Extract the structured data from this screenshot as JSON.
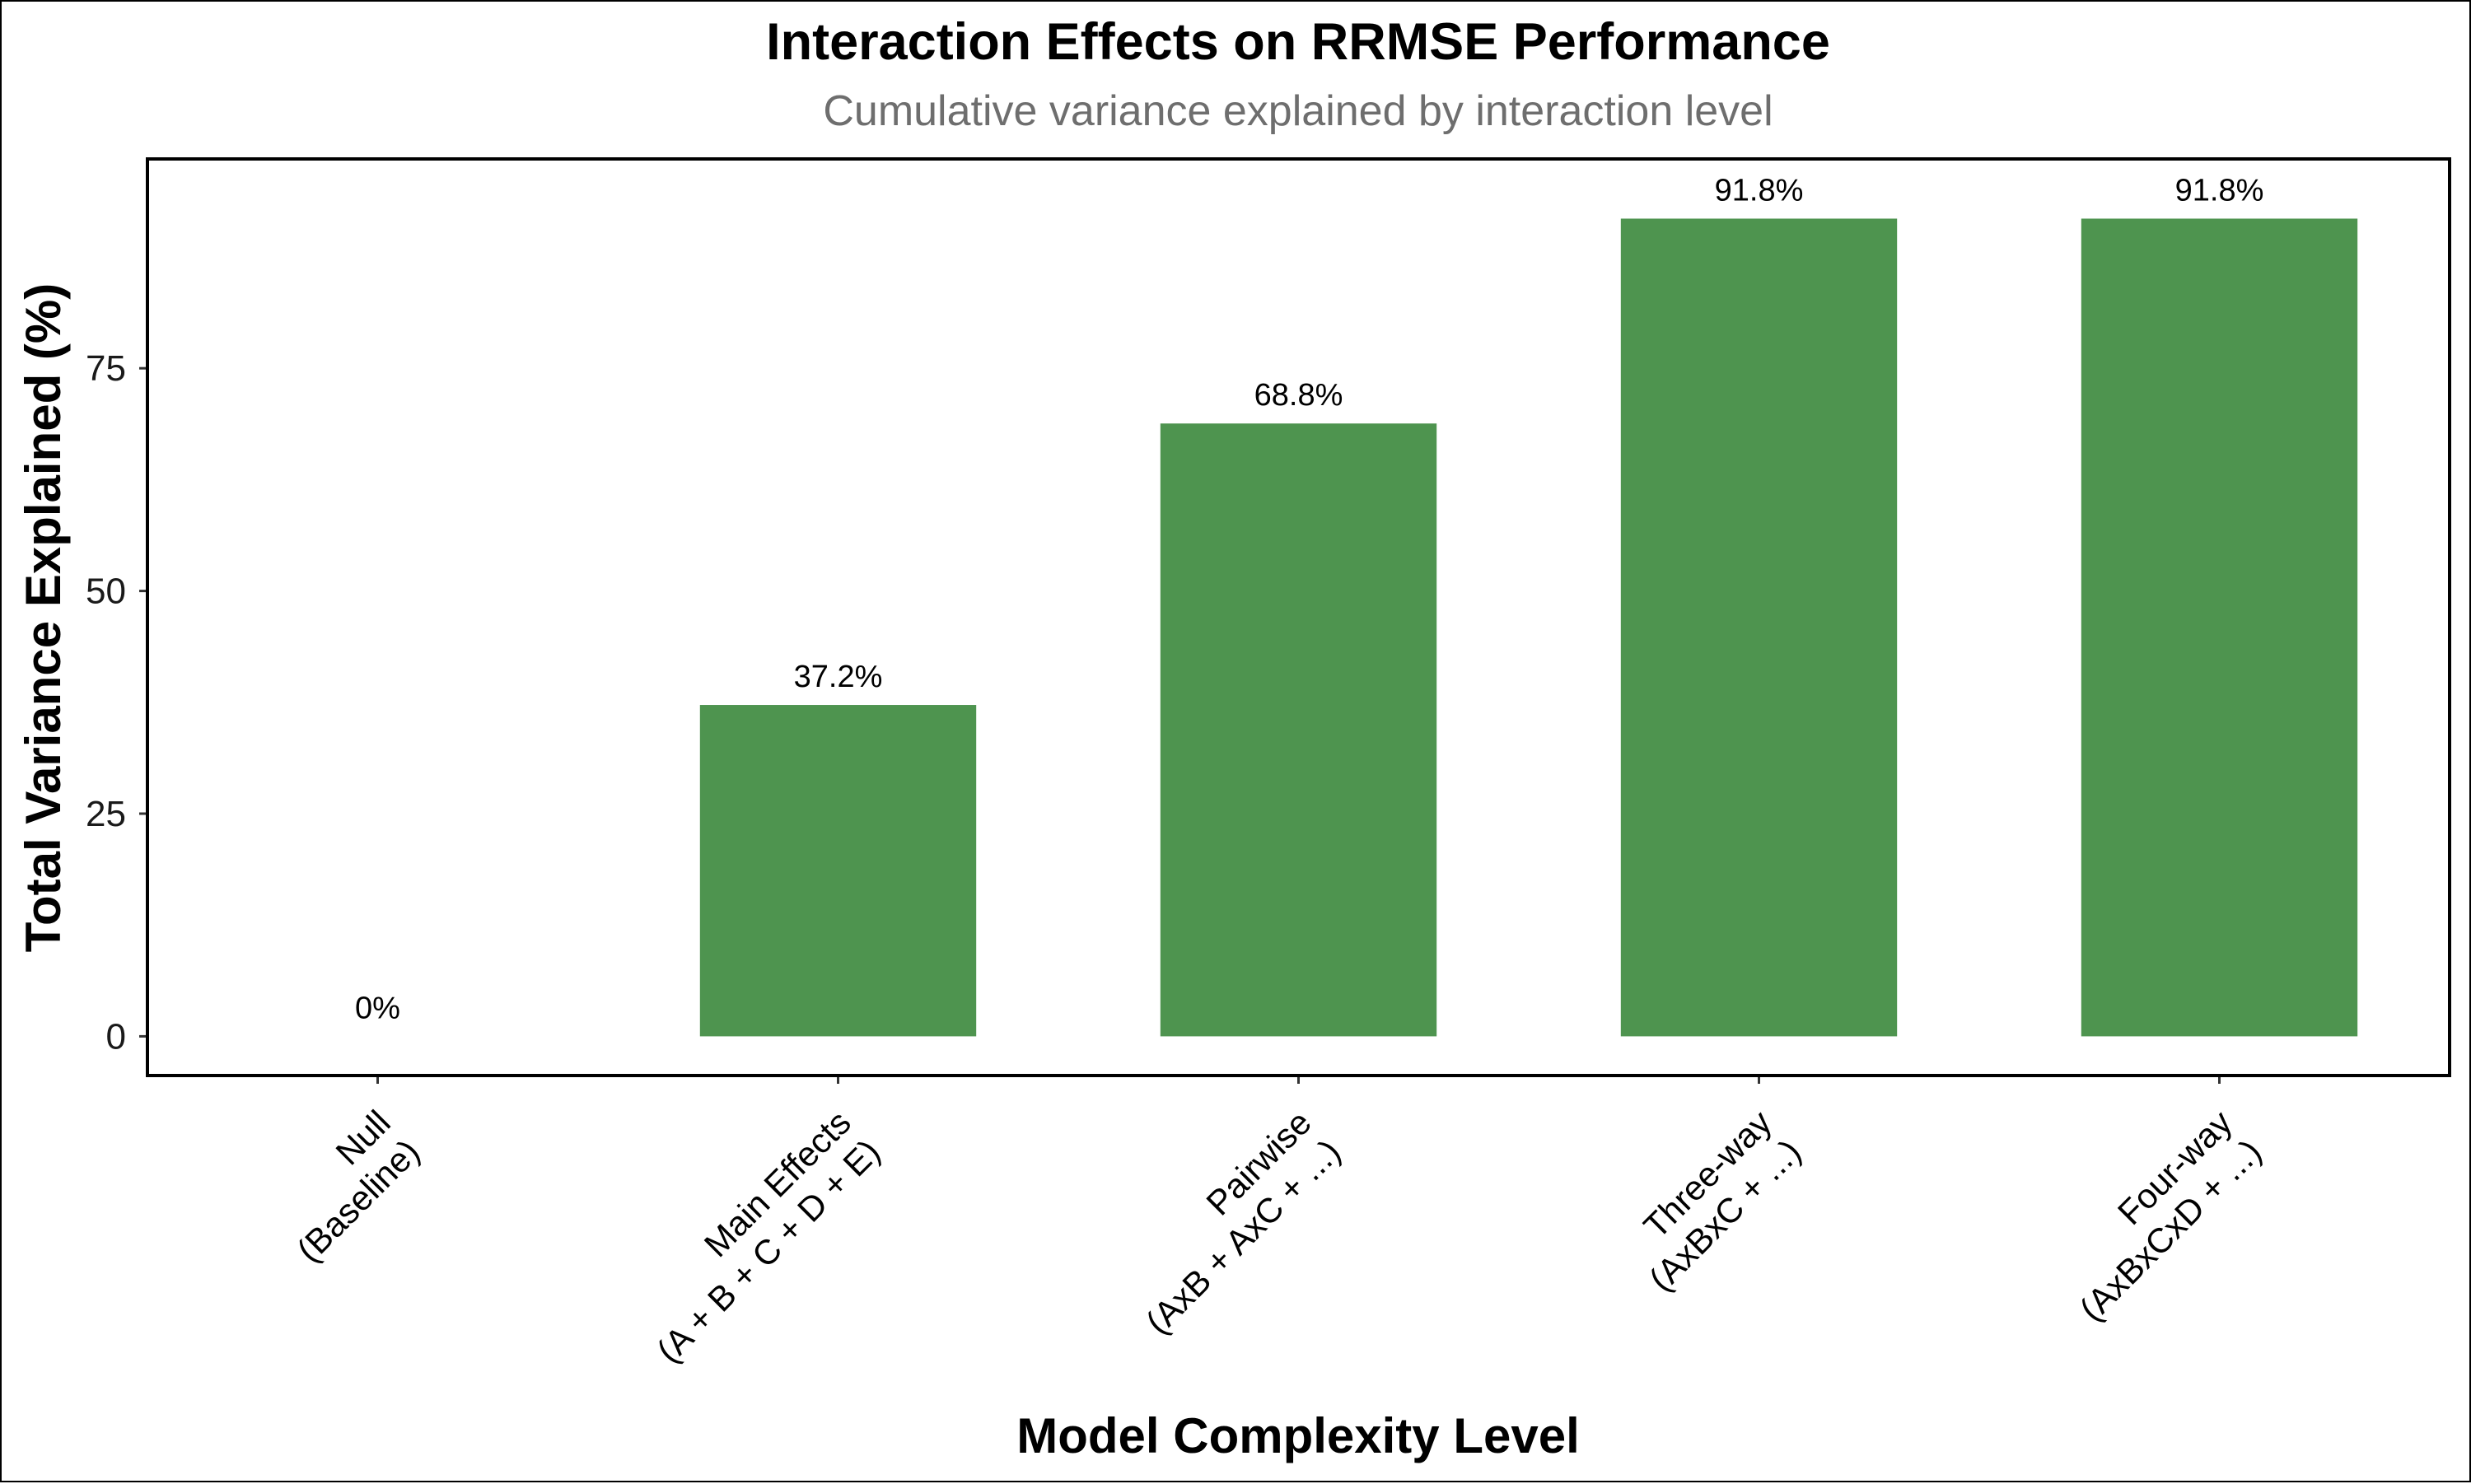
{
  "chart_data": {
    "type": "bar",
    "title": "Interaction Effects on RRMSE Performance",
    "subtitle": "Cumulative variance explained by interaction level",
    "xlabel": "Model Complexity Level",
    "ylabel": "Total Variance Explained (%)",
    "categories": [
      [
        "Null",
        "(Baseline)"
      ],
      [
        "Main Effects",
        "(A + B + C + D + E)"
      ],
      [
        "Pairwise",
        "(AxB + AxC + ...)"
      ],
      [
        "Three-way",
        "(AxBxC + ...)"
      ],
      [
        "Four-way",
        "(AxBxCxD + ...)"
      ]
    ],
    "values": [
      0,
      37.2,
      68.8,
      91.8,
      91.8
    ],
    "value_labels": [
      "0%",
      "37.2%",
      "68.8%",
      "91.8%",
      "91.8%"
    ],
    "ylim": [
      -4.4,
      98.5
    ],
    "yticks": [
      0,
      25,
      50,
      75
    ],
    "ytick_labels": [
      "0",
      "25",
      "50",
      "75"
    ],
    "bar_color": "#4e944f",
    "grid": false,
    "legend": "none"
  }
}
